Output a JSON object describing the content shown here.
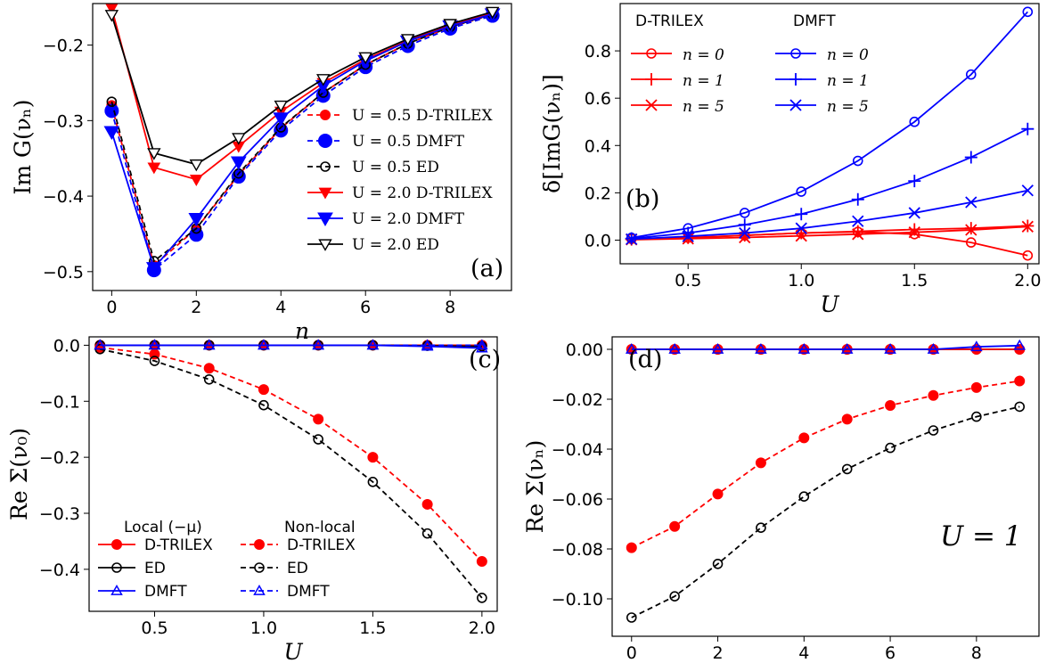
{
  "colors": {
    "red": "#ff0000",
    "blue": "#0000ff",
    "black": "#000000"
  },
  "chart_data": [
    {
      "id": "a",
      "type": "line",
      "panel_label": "(a)",
      "xlabel": "n",
      "ylabel": "Im G(νₙ)",
      "xlim": [
        -0.45,
        9.45
      ],
      "ylim": [
        -0.525,
        -0.145
      ],
      "xticks": [
        0,
        2,
        4,
        6,
        8
      ],
      "xtick_labels": [
        "0",
        "2",
        "4",
        "6",
        "8"
      ],
      "yticks": [
        -0.5,
        -0.4,
        -0.3,
        -0.2
      ],
      "ytick_labels": [
        "−0.5",
        "−0.4",
        "−0.3",
        "−0.2"
      ],
      "legend": "right",
      "x": [
        0,
        1,
        2,
        3,
        4,
        5,
        6,
        7,
        8,
        9
      ],
      "series": [
        {
          "name": "U=0.5 D-TRILEX",
          "color": "red",
          "dash": true,
          "marker": "dot",
          "values": [
            -0.28,
            -0.492,
            -0.443,
            -0.372,
            -0.31,
            -0.263,
            -0.226,
            -0.198,
            -0.176,
            -0.16
          ]
        },
        {
          "name": "U=0.5 DMFT",
          "color": "blue",
          "dash": true,
          "marker": "bigdot",
          "values": [
            -0.287,
            -0.498,
            -0.451,
            -0.374,
            -0.313,
            -0.267,
            -0.229,
            -0.201,
            -0.178,
            -0.161
          ]
        },
        {
          "name": "U=0.5 ED",
          "color": "black",
          "dash": true,
          "marker": "circle",
          "values": [
            -0.275,
            -0.486,
            -0.443,
            -0.37,
            -0.309,
            -0.263,
            -0.226,
            -0.198,
            -0.176,
            -0.159
          ]
        },
        {
          "name": "U=2.0 D-TRILEX",
          "color": "red",
          "dash": false,
          "marker": "tri-down-filled",
          "values": [
            -0.151,
            -0.362,
            -0.378,
            -0.334,
            -0.288,
            -0.25,
            -0.219,
            -0.194,
            -0.173,
            -0.157
          ]
        },
        {
          "name": "U=2.0 DMFT",
          "color": "blue",
          "dash": false,
          "marker": "tri-down-big",
          "values": [
            -0.315,
            -0.495,
            -0.43,
            -0.355,
            -0.297,
            -0.254,
            -0.221,
            -0.195,
            -0.175,
            -0.159
          ]
        },
        {
          "name": "U=2.0 ED",
          "color": "black",
          "dash": false,
          "marker": "tri-down-open",
          "values": [
            -0.16,
            -0.343,
            -0.358,
            -0.323,
            -0.28,
            -0.245,
            -0.216,
            -0.192,
            -0.172,
            -0.156
          ]
        }
      ],
      "legend_labels": [
        "U = 0.5 D-TRILEX",
        "U = 0.5 DMFT",
        "U = 0.5 ED",
        "U = 2.0 D-TRILEX",
        "U = 2.0 DMFT",
        "U = 2.0 ED"
      ]
    },
    {
      "id": "b",
      "type": "line",
      "panel_label": "(b)",
      "xlabel": "U",
      "ylabel": "δ[ImG(νₙ)]",
      "xlim": [
        0.2,
        2.05
      ],
      "ylim": [
        -0.1,
        1.0
      ],
      "xticks": [
        0.5,
        1.0,
        1.5,
        2.0
      ],
      "xtick_labels": [
        "0.5",
        "1.0",
        "1.5",
        "2.0"
      ],
      "yticks": [
        0.0,
        0.2,
        0.4,
        0.6,
        0.8
      ],
      "ytick_labels": [
        "0.0",
        "0.2",
        "0.4",
        "0.6",
        "0.8"
      ],
      "legend": "upper-left",
      "legend_titles": [
        "D-TRILEX",
        "DMFT"
      ],
      "x": [
        0.25,
        0.5,
        0.75,
        1.0,
        1.25,
        1.5,
        1.75,
        2.0
      ],
      "series": [
        {
          "name": "D-TRILEX n = 0",
          "color": "red",
          "marker": "circle",
          "values": [
            0.005,
            0.01,
            0.02,
            0.03,
            0.035,
            0.025,
            -0.01,
            -0.065
          ]
        },
        {
          "name": "D-TRILEX n = 1",
          "color": "red",
          "marker": "plus",
          "values": [
            0.003,
            0.01,
            0.02,
            0.03,
            0.037,
            0.045,
            0.05,
            0.06
          ]
        },
        {
          "name": "D-TRILEX n = 5",
          "color": "red",
          "marker": "x",
          "values": [
            0.002,
            0.006,
            0.011,
            0.018,
            0.025,
            0.033,
            0.043,
            0.057
          ]
        },
        {
          "name": "DMFT n = 0",
          "color": "blue",
          "marker": "circle",
          "values": [
            0.01,
            0.05,
            0.115,
            0.205,
            0.335,
            0.5,
            0.7,
            0.965
          ]
        },
        {
          "name": "DMFT n = 1",
          "color": "blue",
          "marker": "plus",
          "values": [
            0.007,
            0.03,
            0.065,
            0.11,
            0.172,
            0.25,
            0.35,
            0.47
          ]
        },
        {
          "name": "DMFT n = 5",
          "color": "blue",
          "marker": "x",
          "values": [
            0.004,
            0.016,
            0.03,
            0.05,
            0.08,
            0.115,
            0.16,
            0.21
          ]
        }
      ],
      "legend_labels": [
        "n = 0",
        "n = 1",
        "n = 5",
        "n = 0",
        "n = 1",
        "n = 5"
      ]
    },
    {
      "id": "c",
      "type": "line",
      "panel_label": "(c)",
      "xlabel": "U",
      "ylabel": "Re Σ(ν₀)",
      "xlim": [
        0.2,
        2.07
      ],
      "ylim": [
        -0.475,
        0.015
      ],
      "xticks": [
        0.5,
        1.0,
        1.5,
        2.0
      ],
      "xtick_labels": [
        "0.5",
        "1.0",
        "1.5",
        "2.0"
      ],
      "yticks": [
        0.0,
        -0.1,
        -0.2,
        -0.3,
        -0.4
      ],
      "ytick_labels": [
        "0.0",
        "−0.1",
        "−0.2",
        "−0.3",
        "−0.4"
      ],
      "legend": "lower-left",
      "legend_titles": [
        "Local (−μ)",
        "Non-local"
      ],
      "x": [
        0.25,
        0.5,
        0.75,
        1.0,
        1.25,
        1.5,
        1.75,
        2.0
      ],
      "series": [
        {
          "name": "Local D-TRILEX",
          "color": "red",
          "dash": false,
          "marker": "dot",
          "values": [
            0.0,
            0.0,
            0.0,
            0.0,
            0.0,
            0.0,
            0.0,
            0.0
          ]
        },
        {
          "name": "Local ED",
          "color": "black",
          "dash": false,
          "marker": "circle",
          "values": [
            0.0,
            0.0,
            0.0,
            0.0,
            0.0,
            0.0,
            -0.001,
            -0.002
          ]
        },
        {
          "name": "Local DMFT",
          "color": "blue",
          "dash": false,
          "marker": "triangle",
          "values": [
            0.0,
            0.0,
            0.0,
            0.0,
            0.0,
            0.0,
            -0.002,
            -0.005
          ]
        },
        {
          "name": "Non-local D-TRILEX",
          "color": "red",
          "dash": true,
          "marker": "dot",
          "values": [
            -0.004,
            -0.016,
            -0.041,
            -0.079,
            -0.132,
            -0.2,
            -0.284,
            -0.386
          ]
        },
        {
          "name": "Non-local ED",
          "color": "black",
          "dash": true,
          "marker": "circle",
          "values": [
            -0.007,
            -0.028,
            -0.061,
            -0.107,
            -0.168,
            -0.244,
            -0.336,
            -0.451
          ]
        },
        {
          "name": "Non-local DMFT",
          "color": "blue",
          "dash": true,
          "marker": "triangle",
          "values": [
            0.0,
            0.0,
            0.0,
            0.0,
            0.0,
            0.0,
            0.0,
            0.0
          ]
        }
      ],
      "legend_labels": [
        "D-TRILEX",
        "ED",
        "DMFT",
        "D-TRILEX",
        "ED",
        "DMFT"
      ]
    },
    {
      "id": "d",
      "type": "line",
      "panel_label": "(d)",
      "annotation": "U = 1",
      "xlabel": "n",
      "ylabel": "Re Σ(νₙ)",
      "xlim": [
        -0.45,
        9.45
      ],
      "ylim": [
        -0.115,
        0.005
      ],
      "xticks": [
        0,
        2,
        4,
        6,
        8
      ],
      "xtick_labels": [
        "0",
        "2",
        "4",
        "6",
        "8"
      ],
      "yticks": [
        0.0,
        -0.02,
        -0.04,
        -0.06,
        -0.08,
        -0.1
      ],
      "ytick_labels": [
        "0.00",
        "−0.02",
        "−0.04",
        "−0.06",
        "−0.08",
        "−0.10"
      ],
      "x": [
        0,
        1,
        2,
        3,
        4,
        5,
        6,
        7,
        8,
        9
      ],
      "series": [
        {
          "name": "ED local",
          "color": "black",
          "dash": false,
          "marker": "circle",
          "values": [
            0.0,
            0.0,
            0.0,
            0.0,
            0.0,
            0.0,
            0.0,
            0.0,
            0.0,
            0.0
          ]
        },
        {
          "name": "D-TRILEX local",
          "color": "red",
          "dash": false,
          "marker": "dot",
          "values": [
            0.0,
            0.0,
            0.0,
            0.0,
            0.0,
            0.0,
            0.0,
            0.0,
            0.0,
            0.0
          ]
        },
        {
          "name": "DMFT",
          "color": "blue",
          "dash": false,
          "marker": "triangle",
          "values": [
            0.0,
            0.0,
            0.0,
            0.0,
            0.0,
            0.0,
            0.0,
            0.0,
            0.001,
            0.0015
          ]
        },
        {
          "name": "D-TRILEX non-local",
          "color": "red",
          "dash": true,
          "marker": "dot",
          "values": [
            -0.0795,
            -0.071,
            -0.058,
            -0.0455,
            -0.0355,
            -0.028,
            -0.0225,
            -0.0185,
            -0.0153,
            -0.0127
          ]
        },
        {
          "name": "ED non-local",
          "color": "black",
          "dash": true,
          "marker": "circle",
          "values": [
            -0.1075,
            -0.099,
            -0.086,
            -0.0715,
            -0.059,
            -0.048,
            -0.0395,
            -0.0325,
            -0.027,
            -0.023
          ]
        }
      ]
    }
  ]
}
